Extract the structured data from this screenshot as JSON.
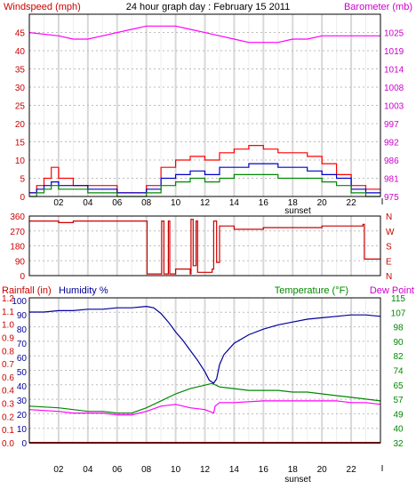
{
  "chart_data": [
    {
      "type": "line",
      "panel": "wind-barometer",
      "title": "24 hour graph day : February 15 2011",
      "left_axis_label": "Windspeed (mph)",
      "right_axis_label": "Barometer (mb)",
      "left_ticks": [
        "0",
        "5",
        "10",
        "15",
        "20",
        "25",
        "30",
        "35",
        "40",
        "45"
      ],
      "right_ticks": [
        "975",
        "981",
        "986",
        "992",
        "997",
        "1003",
        "1008",
        "1014",
        "1019",
        "1025"
      ],
      "x_ticks": [
        "02",
        "04",
        "06",
        "08",
        "10",
        "12",
        "14",
        "16",
        "18",
        "20",
        "22"
      ],
      "x_end_label": "I",
      "sunset_label": "sunset",
      "left_range": [
        0,
        50
      ],
      "right_range": [
        975,
        1030.6
      ],
      "x_range_hours": [
        0,
        24
      ],
      "grid": true,
      "colors": {
        "gust": "#ff0000",
        "average": "#0000cc",
        "direction": "#008800",
        "barometer": "#ff00ff",
        "left_axis": "#cc0000",
        "right_axis": "#cc00cc"
      },
      "series": [
        {
          "key": "gust",
          "points": [
            [
              0,
              1
            ],
            [
              0.5,
              3
            ],
            [
              1,
              5
            ],
            [
              1.5,
              8
            ],
            [
              2,
              5
            ],
            [
              3,
              3
            ],
            [
              4,
              3
            ],
            [
              5,
              3
            ],
            [
              6,
              1
            ],
            [
              7,
              1
            ],
            [
              8,
              3
            ],
            [
              9,
              8
            ],
            [
              10,
              10
            ],
            [
              11,
              11
            ],
            [
              12,
              10
            ],
            [
              13,
              12
            ],
            [
              14,
              13
            ],
            [
              15,
              14
            ],
            [
              16,
              13
            ],
            [
              17,
              12
            ],
            [
              18,
              12
            ],
            [
              19,
              11
            ],
            [
              20,
              9
            ],
            [
              21,
              6
            ],
            [
              22,
              3
            ],
            [
              23,
              2
            ],
            [
              24,
              2
            ]
          ]
        },
        {
          "key": "average",
          "points": [
            [
              0,
              1
            ],
            [
              0.5,
              2
            ],
            [
              1,
              3
            ],
            [
              1.5,
              4
            ],
            [
              2,
              3
            ],
            [
              3,
              3
            ],
            [
              4,
              2
            ],
            [
              5,
              2
            ],
            [
              6,
              1
            ],
            [
              7,
              1
            ],
            [
              8,
              2
            ],
            [
              9,
              5
            ],
            [
              10,
              6
            ],
            [
              11,
              7
            ],
            [
              12,
              6
            ],
            [
              13,
              8
            ],
            [
              14,
              8
            ],
            [
              15,
              9
            ],
            [
              16,
              9
            ],
            [
              17,
              8
            ],
            [
              18,
              8
            ],
            [
              19,
              7
            ],
            [
              20,
              6
            ],
            [
              21,
              5
            ],
            [
              22,
              2
            ],
            [
              23,
              1
            ],
            [
              24,
              1
            ]
          ]
        },
        {
          "key": "direction",
          "points": [
            [
              0,
              0
            ],
            [
              0.5,
              1
            ],
            [
              1,
              2
            ],
            [
              1.5,
              3
            ],
            [
              2,
              2
            ],
            [
              3,
              2
            ],
            [
              4,
              1
            ],
            [
              5,
              1
            ],
            [
              6,
              0
            ],
            [
              7,
              0
            ],
            [
              8,
              1
            ],
            [
              9,
              3
            ],
            [
              10,
              4
            ],
            [
              11,
              5
            ],
            [
              12,
              4
            ],
            [
              13,
              5
            ],
            [
              14,
              6
            ],
            [
              15,
              6
            ],
            [
              16,
              6
            ],
            [
              17,
              5
            ],
            [
              18,
              5
            ],
            [
              19,
              5
            ],
            [
              20,
              4
            ],
            [
              21,
              3
            ],
            [
              22,
              1
            ],
            [
              23,
              0
            ],
            [
              24,
              0
            ]
          ]
        },
        {
          "key": "barometer",
          "axis": "right",
          "points": [
            [
              0,
              1025
            ],
            [
              2,
              1024
            ],
            [
              3,
              1023
            ],
            [
              4,
              1023
            ],
            [
              5,
              1024
            ],
            [
              6,
              1025
            ],
            [
              7,
              1026
            ],
            [
              8,
              1027
            ],
            [
              9,
              1027
            ],
            [
              10,
              1027
            ],
            [
              11,
              1026
            ],
            [
              12,
              1025
            ],
            [
              13,
              1024
            ],
            [
              14,
              1023
            ],
            [
              15,
              1022
            ],
            [
              16,
              1022
            ],
            [
              17,
              1022
            ],
            [
              18,
              1023
            ],
            [
              19,
              1023
            ],
            [
              20,
              1024
            ],
            [
              21,
              1024
            ],
            [
              22,
              1024
            ],
            [
              23,
              1024
            ],
            [
              24,
              1024
            ]
          ]
        }
      ]
    },
    {
      "type": "line",
      "panel": "wind-direction",
      "left_ticks": [
        "0",
        "90",
        "180",
        "270",
        "360"
      ],
      "right_ticks": [
        "N",
        "E",
        "S",
        "W",
        "N"
      ],
      "left_range": [
        0,
        360
      ],
      "x_range_hours": [
        0,
        24
      ],
      "x_ticks": [
        "02",
        "04",
        "06",
        "08",
        "10",
        "12",
        "14",
        "16",
        "18",
        "20",
        "22"
      ],
      "grid": true,
      "colors": {
        "line": "#cc0000",
        "right_axis": "#cc0000"
      },
      "series": [
        {
          "key": "direction",
          "points": [
            [
              0,
              330
            ],
            [
              2,
              320
            ],
            [
              3,
              330
            ],
            [
              5,
              330
            ],
            [
              7,
              330
            ],
            [
              8,
              330
            ],
            [
              8.05,
              10
            ],
            [
              9,
              10
            ],
            [
              9.05,
              330
            ],
            [
              9.2,
              10
            ],
            [
              9.4,
              10
            ],
            [
              9.5,
              330
            ],
            [
              9.6,
              10
            ],
            [
              10,
              40
            ],
            [
              11,
              10
            ],
            [
              11.05,
              340
            ],
            [
              11.2,
              60
            ],
            [
              11.4,
              330
            ],
            [
              11.5,
              20
            ],
            [
              12,
              20
            ],
            [
              12.5,
              40
            ],
            [
              12.6,
              330
            ],
            [
              12.8,
              80
            ],
            [
              13,
              300
            ],
            [
              14,
              280
            ],
            [
              16,
              290
            ],
            [
              18,
              290
            ],
            [
              20,
              300
            ],
            [
              22,
              300
            ],
            [
              22.8,
              310
            ],
            [
              22.9,
              100
            ],
            [
              24,
              100
            ]
          ]
        }
      ]
    },
    {
      "type": "line",
      "panel": "temperature-humidity",
      "left_axis_label": "Rainfall (in)",
      "humidity_label": "Humidity %",
      "right_axis_label": "Temperature (°F)",
      "dew_point_label": "Dew Point",
      "humidity_ticks": [
        "0",
        "10",
        "20",
        "30",
        "40",
        "50",
        "60",
        "70",
        "80",
        "90",
        "100"
      ],
      "rain_ticks": [
        "0.0",
        "0.1",
        "0.2",
        "0.3",
        "0.4",
        "0.6",
        "0.7",
        "0.8",
        "0.9",
        "1.0",
        "1.1",
        "1.2"
      ],
      "temp_ticks": [
        "32",
        "40",
        "49",
        "57",
        "65",
        "74",
        "82",
        "90",
        "98",
        "107",
        "115"
      ],
      "left_range": [
        0,
        102
      ],
      "right_range": [
        32,
        115
      ],
      "x_range_hours": [
        0,
        24
      ],
      "x_ticks": [
        "02",
        "04",
        "06",
        "08",
        "10",
        "12",
        "14",
        "16",
        "18",
        "20",
        "22"
      ],
      "x_end_label": "I",
      "sunset_label": "sunset",
      "grid": true,
      "colors": {
        "humidity": "#000099",
        "temperature": "#008800",
        "dew_point": "#ff00ff",
        "rainfall": "#cc0000",
        "left_axis": "#cc0000",
        "humidity_axis": "#000099",
        "right_axis": "#008800",
        "dew_axis": "#cc00cc"
      },
      "series": [
        {
          "key": "humidity",
          "points": [
            [
              0,
              92
            ],
            [
              1,
              92
            ],
            [
              2,
              93
            ],
            [
              3,
              93
            ],
            [
              4,
              94
            ],
            [
              5,
              94
            ],
            [
              6,
              95
            ],
            [
              7,
              95
            ],
            [
              8,
              96
            ],
            [
              8.5,
              95
            ],
            [
              9,
              91
            ],
            [
              9.5,
              85
            ],
            [
              10,
              78
            ],
            [
              10.5,
              72
            ],
            [
              11,
              65
            ],
            [
              11.5,
              58
            ],
            [
              12,
              50
            ],
            [
              12.3,
              44
            ],
            [
              12.6,
              42
            ],
            [
              12.8,
              45
            ],
            [
              13,
              55
            ],
            [
              13.3,
              62
            ],
            [
              14,
              70
            ],
            [
              15,
              76
            ],
            [
              16,
              80
            ],
            [
              17,
              83
            ],
            [
              18,
              85
            ],
            [
              19,
              87
            ],
            [
              20,
              88
            ],
            [
              21,
              89
            ],
            [
              22,
              90
            ],
            [
              23,
              90
            ],
            [
              24,
              89
            ]
          ]
        },
        {
          "key": "temperature",
          "points": [
            [
              0,
              53
            ],
            [
              2,
              52
            ],
            [
              3,
              51
            ],
            [
              4,
              50
            ],
            [
              5,
              50
            ],
            [
              6,
              49
            ],
            [
              7,
              49
            ],
            [
              8,
              52
            ],
            [
              9,
              56
            ],
            [
              10,
              60
            ],
            [
              11,
              63
            ],
            [
              12,
              65
            ],
            [
              12.5,
              66
            ],
            [
              13,
              64
            ],
            [
              14,
              63
            ],
            [
              15,
              62
            ],
            [
              16,
              62
            ],
            [
              17,
              62
            ],
            [
              18,
              61
            ],
            [
              19,
              61
            ],
            [
              20,
              60
            ],
            [
              21,
              59
            ],
            [
              22,
              58
            ],
            [
              23,
              57
            ],
            [
              24,
              56
            ]
          ]
        },
        {
          "key": "dew_point",
          "points": [
            [
              0,
              51
            ],
            [
              2,
              50
            ],
            [
              3,
              49
            ],
            [
              4,
              49
            ],
            [
              5,
              49
            ],
            [
              6,
              48
            ],
            [
              7,
              48
            ],
            [
              8,
              50
            ],
            [
              9,
              53
            ],
            [
              10,
              54
            ],
            [
              11,
              52
            ],
            [
              12,
              51
            ],
            [
              12.6,
              49
            ],
            [
              12.7,
              53
            ],
            [
              13,
              55
            ],
            [
              14,
              55
            ],
            [
              16,
              56
            ],
            [
              18,
              56
            ],
            [
              20,
              56
            ],
            [
              21,
              56
            ],
            [
              22,
              55
            ],
            [
              23,
              55
            ],
            [
              24,
              54
            ]
          ]
        },
        {
          "key": "rainfall",
          "points": [
            [
              0,
              0
            ],
            [
              24,
              0
            ]
          ]
        }
      ]
    }
  ]
}
